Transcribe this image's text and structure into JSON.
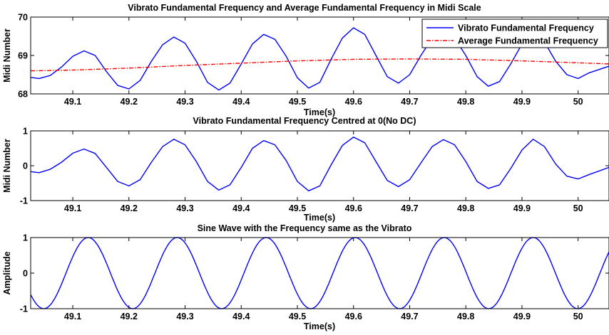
{
  "chart_data": [
    {
      "type": "line",
      "title": "Vibrato Fundamental Frequency and Average Fundamental Frequency in Midi Scale",
      "xlabel": "Time(s)",
      "ylabel": "Midi Number",
      "xlim": [
        49.025,
        50.055
      ],
      "ylim": [
        68,
        70
      ],
      "xticks": [
        49.1,
        49.2,
        49.3,
        49.4,
        49.5,
        49.6,
        49.7,
        49.8,
        49.9,
        50
      ],
      "xtick_labels": [
        "49.1",
        "49.2",
        "49.3",
        "49.4",
        "49.5",
        "49.6",
        "49.7",
        "49.8",
        "49.9",
        "50"
      ],
      "yticks": [
        68,
        69,
        70
      ],
      "ytick_labels": [
        "68",
        "69",
        "70"
      ],
      "grid": false,
      "legend_position": "top-right",
      "series": [
        {
          "name": "Vibrato Fundamental Frequency",
          "color": "#0000ff",
          "style": "solid",
          "x": [
            49.025,
            49.04,
            49.06,
            49.08,
            49.1,
            49.12,
            49.14,
            49.16,
            49.18,
            49.2,
            49.22,
            49.24,
            49.26,
            49.28,
            49.3,
            49.32,
            49.34,
            49.36,
            49.38,
            49.4,
            49.42,
            49.44,
            49.46,
            49.48,
            49.5,
            49.52,
            49.54,
            49.56,
            49.58,
            49.6,
            49.62,
            49.64,
            49.66,
            49.68,
            49.7,
            49.72,
            49.74,
            49.76,
            49.78,
            49.8,
            49.82,
            49.84,
            49.86,
            49.88,
            49.9,
            49.92,
            49.94,
            49.96,
            49.98,
            50.0,
            50.02,
            50.055
          ],
          "y": [
            68.43,
            68.4,
            68.48,
            68.7,
            68.98,
            69.12,
            69.0,
            68.58,
            68.22,
            68.13,
            68.35,
            68.85,
            69.28,
            69.48,
            69.32,
            68.85,
            68.3,
            68.1,
            68.28,
            68.78,
            69.3,
            69.55,
            69.42,
            68.98,
            68.42,
            68.15,
            68.3,
            68.9,
            69.45,
            69.72,
            69.55,
            69.0,
            68.45,
            68.28,
            68.5,
            69.0,
            69.45,
            69.6,
            69.45,
            69.0,
            68.45,
            68.2,
            68.32,
            68.78,
            69.3,
            69.55,
            69.35,
            68.85,
            68.5,
            68.4,
            68.55,
            68.72
          ]
        },
        {
          "name": "Average Fundamental Frequency",
          "color": "#ff0000",
          "style": "dash-dot",
          "x": [
            49.025,
            49.1,
            49.2,
            49.3,
            49.4,
            49.5,
            49.6,
            49.7,
            49.8,
            49.9,
            50.0,
            50.055
          ],
          "y": [
            68.6,
            68.62,
            68.67,
            68.74,
            68.8,
            68.86,
            68.9,
            68.91,
            68.9,
            68.86,
            68.81,
            68.78
          ]
        }
      ]
    },
    {
      "type": "line",
      "title": "Vibrato Fundamental Frequency Centred at 0(No DC)",
      "xlabel": "Time(s)",
      "ylabel": "Midi Number",
      "xlim": [
        49.025,
        50.055
      ],
      "ylim": [
        -1,
        1
      ],
      "xticks": [
        49.1,
        49.2,
        49.3,
        49.4,
        49.5,
        49.6,
        49.7,
        49.8,
        49.9,
        50
      ],
      "xtick_labels": [
        "49.1",
        "49.2",
        "49.3",
        "49.4",
        "49.5",
        "49.6",
        "49.7",
        "49.8",
        "49.9",
        "50"
      ],
      "yticks": [
        -1,
        0,
        1
      ],
      "ytick_labels": [
        "-1",
        "0",
        "1"
      ],
      "grid": false,
      "series": [
        {
          "color": "#0000ff",
          "style": "solid",
          "x": [
            49.025,
            49.04,
            49.06,
            49.08,
            49.1,
            49.12,
            49.14,
            49.16,
            49.18,
            49.2,
            49.22,
            49.24,
            49.26,
            49.28,
            49.3,
            49.32,
            49.34,
            49.36,
            49.38,
            49.4,
            49.42,
            49.44,
            49.46,
            49.48,
            49.5,
            49.52,
            49.54,
            49.56,
            49.58,
            49.6,
            49.62,
            49.64,
            49.66,
            49.68,
            49.7,
            49.72,
            49.74,
            49.76,
            49.78,
            49.8,
            49.82,
            49.84,
            49.86,
            49.88,
            49.9,
            49.92,
            49.94,
            49.96,
            49.98,
            50.0,
            50.02,
            50.055
          ],
          "y": [
            -0.17,
            -0.2,
            -0.1,
            0.1,
            0.36,
            0.48,
            0.35,
            -0.05,
            -0.45,
            -0.58,
            -0.4,
            0.1,
            0.55,
            0.76,
            0.6,
            0.12,
            -0.45,
            -0.7,
            -0.55,
            -0.05,
            0.5,
            0.72,
            0.6,
            0.15,
            -0.45,
            -0.72,
            -0.58,
            0.02,
            0.58,
            0.82,
            0.66,
            0.12,
            -0.42,
            -0.6,
            -0.4,
            0.08,
            0.55,
            0.75,
            0.6,
            0.12,
            -0.45,
            -0.65,
            -0.55,
            -0.08,
            0.45,
            0.76,
            0.55,
            0.05,
            -0.3,
            -0.38,
            -0.25,
            -0.05
          ]
        }
      ]
    },
    {
      "type": "line",
      "title": "Sine Wave with the Frequency same as the Vibrato",
      "xlabel": "Time(s)",
      "ylabel": "Amplitude",
      "xlim": [
        49.025,
        50.055
      ],
      "ylim": [
        -1,
        1
      ],
      "xticks": [
        49.1,
        49.2,
        49.3,
        49.4,
        49.5,
        49.6,
        49.7,
        49.8,
        49.9,
        50
      ],
      "xtick_labels": [
        "49.1",
        "49.2",
        "49.3",
        "49.4",
        "49.5",
        "49.6",
        "49.7",
        "49.8",
        "49.9",
        "50"
      ],
      "yticks": [
        -1,
        0,
        1
      ],
      "ytick_labels": [
        "-1",
        "0",
        "1"
      ],
      "grid": false,
      "series": [
        {
          "color": "#0000ff",
          "style": "solid",
          "sine": {
            "amplitude": 1,
            "period": 0.1585,
            "peak_at": 49.1275,
            "x_start": 49.025,
            "x_end": 50.055
          }
        }
      ]
    }
  ]
}
